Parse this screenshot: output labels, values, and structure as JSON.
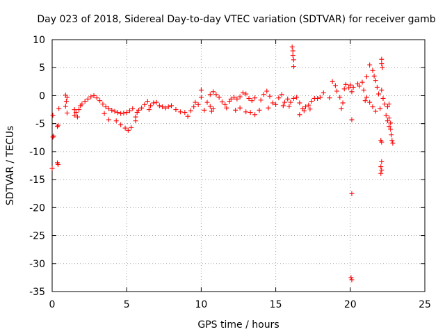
{
  "chart_data": {
    "type": "scatter",
    "title": "Day 023 of 2018, Sidereal Day-to-day VTEC variation (SDTVAR) for receiver gamb",
    "xlabel": "GPS time / hours",
    "ylabel": "SDTVAR / TECUs",
    "xlim": [
      0,
      25
    ],
    "ylim": [
      -35,
      10
    ],
    "x_ticks": [
      0,
      5,
      10,
      15,
      20,
      25
    ],
    "y_ticks": [
      10,
      5,
      0,
      -5,
      -10,
      -15,
      -20,
      -25,
      -30,
      -35
    ],
    "grid": true,
    "marker": "+",
    "series": [
      {
        "name": "SDTVAR",
        "color": "#ff0000",
        "points": [
          [
            0.0,
            -13.0
          ],
          [
            0.05,
            -7.4
          ],
          [
            0.1,
            -7.2
          ],
          [
            0.05,
            -3.5
          ],
          [
            0.35,
            -12.0
          ],
          [
            0.4,
            -12.3
          ],
          [
            0.35,
            -5.5
          ],
          [
            0.4,
            -5.3
          ],
          [
            0.45,
            -2.3
          ],
          [
            0.9,
            0.1
          ],
          [
            1.0,
            -0.3
          ],
          [
            0.95,
            -1.0
          ],
          [
            0.9,
            -1.9
          ],
          [
            1.0,
            -3.1
          ],
          [
            1.5,
            -3.5
          ],
          [
            1.6,
            -3.0
          ],
          [
            1.7,
            -3.8
          ],
          [
            1.8,
            -2.5
          ],
          [
            1.9,
            -1.8
          ],
          [
            2.0,
            -1.5
          ],
          [
            1.5,
            -2.5
          ],
          [
            2.2,
            -1.0
          ],
          [
            2.4,
            -0.6
          ],
          [
            2.6,
            -0.2
          ],
          [
            2.8,
            0.0
          ],
          [
            3.0,
            -0.4
          ],
          [
            3.2,
            -0.9
          ],
          [
            3.4,
            -1.5
          ],
          [
            3.6,
            -2.0
          ],
          [
            3.8,
            -2.3
          ],
          [
            4.0,
            -2.6
          ],
          [
            4.2,
            -2.8
          ],
          [
            4.4,
            -3.0
          ],
          [
            4.6,
            -3.2
          ],
          [
            4.8,
            -3.1
          ],
          [
            5.0,
            -3.0
          ],
          [
            5.2,
            -2.7
          ],
          [
            5.4,
            -2.3
          ],
          [
            3.5,
            -3.2
          ],
          [
            3.8,
            -4.3
          ],
          [
            4.3,
            -4.5
          ],
          [
            4.6,
            -5.2
          ],
          [
            4.9,
            -5.8
          ],
          [
            5.1,
            -6.2
          ],
          [
            5.3,
            -5.7
          ],
          [
            5.6,
            -4.5
          ],
          [
            5.6,
            -3.8
          ],
          [
            5.7,
            -3.0
          ],
          [
            5.8,
            -2.6
          ],
          [
            6.0,
            -2.2
          ],
          [
            6.2,
            -1.6
          ],
          [
            6.4,
            -1.0
          ],
          [
            6.5,
            -2.5
          ],
          [
            6.6,
            -1.8
          ],
          [
            6.8,
            -1.3
          ],
          [
            7.0,
            -1.2
          ],
          [
            7.2,
            -1.8
          ],
          [
            7.4,
            -2.0
          ],
          [
            7.6,
            -2.2
          ],
          [
            7.8,
            -2.0
          ],
          [
            8.0,
            -1.8
          ],
          [
            8.3,
            -2.5
          ],
          [
            8.6,
            -2.9
          ],
          [
            8.9,
            -3.0
          ],
          [
            9.1,
            -3.7
          ],
          [
            9.3,
            -2.7
          ],
          [
            9.5,
            -2.0
          ],
          [
            9.6,
            -1.2
          ],
          [
            9.8,
            -1.6
          ],
          [
            10.0,
            -0.3
          ],
          [
            10.0,
            1.0
          ],
          [
            10.2,
            -2.6
          ],
          [
            10.4,
            -1.2
          ],
          [
            10.6,
            0.2
          ],
          [
            10.8,
            0.7
          ],
          [
            11.0,
            0.2
          ],
          [
            11.2,
            -0.3
          ],
          [
            11.4,
            -1.1
          ],
          [
            10.6,
            -1.9
          ],
          [
            10.7,
            -2.8
          ],
          [
            10.8,
            -2.3
          ],
          [
            11.6,
            -1.6
          ],
          [
            11.7,
            -2.2
          ],
          [
            11.9,
            -1.0
          ],
          [
            12.0,
            -0.6
          ],
          [
            12.2,
            -0.3
          ],
          [
            12.4,
            -0.6
          ],
          [
            12.6,
            -0.2
          ],
          [
            12.8,
            0.5
          ],
          [
            13.0,
            0.3
          ],
          [
            13.2,
            -0.5
          ],
          [
            13.4,
            -0.9
          ],
          [
            13.6,
            -0.4
          ],
          [
            12.3,
            -2.6
          ],
          [
            12.6,
            -2.2
          ],
          [
            13.0,
            -2.9
          ],
          [
            13.3,
            -3.0
          ],
          [
            13.6,
            -3.4
          ],
          [
            13.9,
            -2.6
          ],
          [
            14.0,
            -0.8
          ],
          [
            14.2,
            0.2
          ],
          [
            14.4,
            0.8
          ],
          [
            14.6,
            -0.1
          ],
          [
            14.8,
            -1.3
          ],
          [
            14.5,
            -2.2
          ],
          [
            15.0,
            -1.6
          ],
          [
            15.2,
            -0.4
          ],
          [
            15.4,
            0.2
          ],
          [
            15.6,
            -1.2
          ],
          [
            15.8,
            -0.6
          ],
          [
            16.0,
            -1.2
          ],
          [
            16.2,
            -0.5
          ],
          [
            15.5,
            -1.8
          ],
          [
            15.9,
            -1.9
          ],
          [
            16.1,
            8.7
          ],
          [
            16.15,
            8.0
          ],
          [
            16.15,
            7.2
          ],
          [
            16.2,
            6.4
          ],
          [
            16.2,
            5.2
          ],
          [
            16.4,
            -0.3
          ],
          [
            16.6,
            -1.3
          ],
          [
            16.8,
            -2.3
          ],
          [
            17.0,
            -2.0
          ],
          [
            17.2,
            -1.7
          ],
          [
            17.4,
            -1.0
          ],
          [
            17.6,
            -0.5
          ],
          [
            16.6,
            -3.4
          ],
          [
            16.9,
            -2.7
          ],
          [
            17.3,
            -2.4
          ],
          [
            17.8,
            -0.5
          ],
          [
            18.0,
            -0.3
          ],
          [
            18.2,
            0.5
          ],
          [
            18.6,
            -0.4
          ],
          [
            18.8,
            2.5
          ],
          [
            19.0,
            1.8
          ],
          [
            19.1,
            0.8
          ],
          [
            19.3,
            -0.3
          ],
          [
            19.5,
            -1.3
          ],
          [
            19.6,
            1.2
          ],
          [
            19.7,
            2.0
          ],
          [
            19.9,
            1.4
          ],
          [
            20.0,
            1.9
          ],
          [
            20.1,
            0.7
          ],
          [
            20.2,
            1.5
          ],
          [
            19.4,
            -2.3
          ],
          [
            20.1,
            -4.3
          ],
          [
            20.1,
            -17.5
          ],
          [
            20.05,
            -32.5
          ],
          [
            20.1,
            -32.9
          ],
          [
            20.5,
            2.1
          ],
          [
            20.6,
            1.7
          ],
          [
            20.8,
            2.4
          ],
          [
            20.9,
            1.0
          ],
          [
            21.0,
            -0.9
          ],
          [
            21.1,
            -0.3
          ],
          [
            21.1,
            3.4
          ],
          [
            21.3,
            5.5
          ],
          [
            21.5,
            4.5
          ],
          [
            21.6,
            3.5
          ],
          [
            21.7,
            2.7
          ],
          [
            21.8,
            1.5
          ],
          [
            21.9,
            0.3
          ],
          [
            21.3,
            -1.2
          ],
          [
            21.5,
            -2.0
          ],
          [
            21.7,
            -2.8
          ],
          [
            22.1,
            6.5
          ],
          [
            22.1,
            5.7
          ],
          [
            22.15,
            5.0
          ],
          [
            22.1,
            1.0
          ],
          [
            22.2,
            -0.5
          ],
          [
            22.0,
            -2.3
          ],
          [
            22.1,
            -8.3
          ],
          [
            22.05,
            -8.0
          ],
          [
            22.1,
            -11.8
          ],
          [
            22.05,
            -12.7
          ],
          [
            22.1,
            -13.3
          ],
          [
            22.05,
            -13.9
          ],
          [
            22.3,
            -1.5
          ],
          [
            22.5,
            -2.0
          ],
          [
            22.6,
            -1.5
          ],
          [
            22.4,
            -3.5
          ],
          [
            22.5,
            -4.5
          ],
          [
            22.6,
            -5.5
          ],
          [
            22.7,
            -6.0
          ],
          [
            22.75,
            -7.0
          ],
          [
            22.8,
            -8.0
          ],
          [
            22.85,
            -8.5
          ],
          [
            22.6,
            -4.0
          ],
          [
            22.7,
            -4.9
          ]
        ]
      }
    ]
  }
}
